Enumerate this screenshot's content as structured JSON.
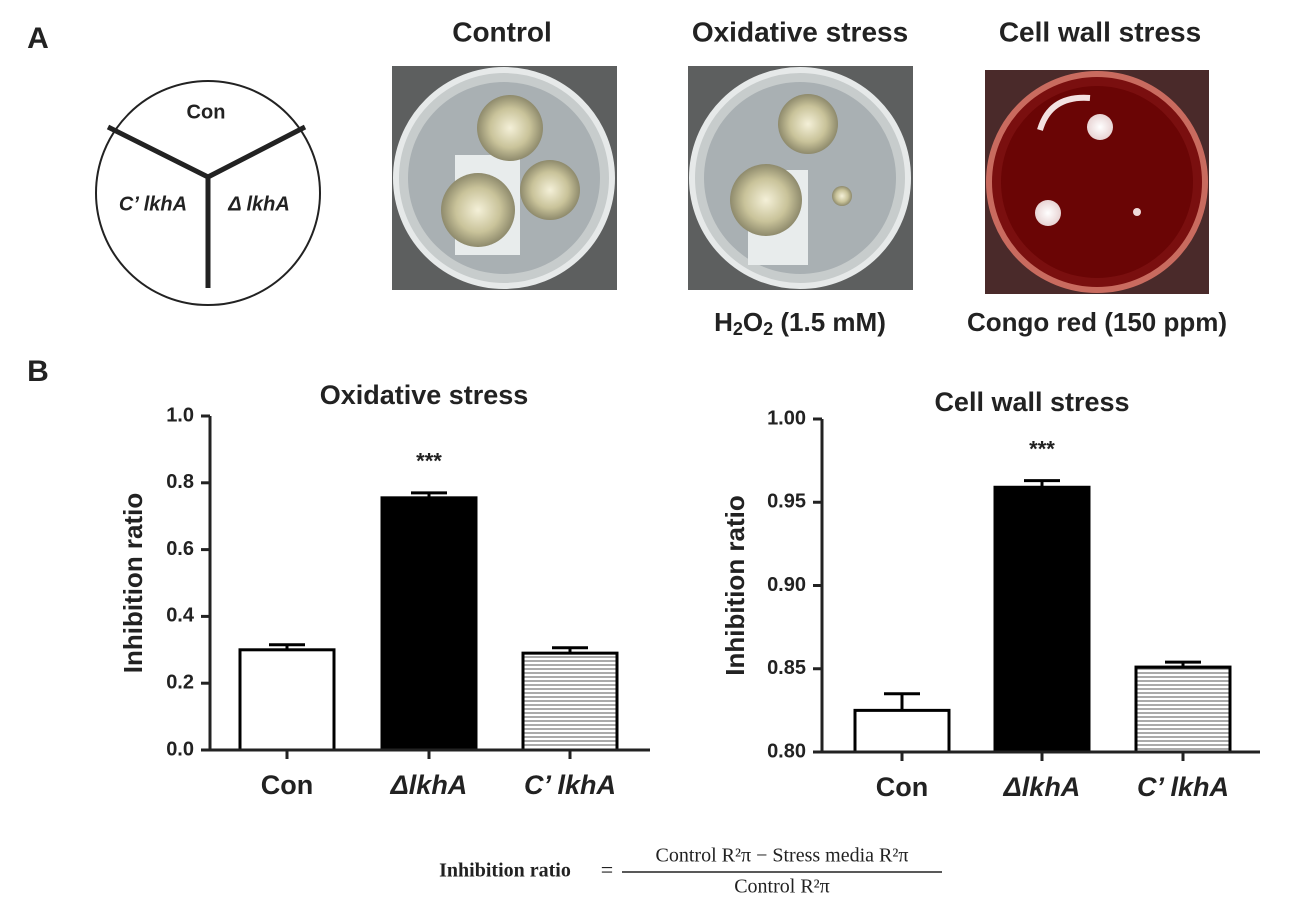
{
  "panel_labels": [
    "A",
    "B"
  ],
  "panel_a": {
    "diagram": {
      "top": "Con",
      "left": "C’ lkhA",
      "right": "Δ lkhA"
    },
    "photo_titles": [
      "Control",
      "Oxidative stress",
      "Cell wall stress"
    ],
    "captions": [
      [
        "H",
        "2",
        "O",
        "2",
        " (1.5 mM)"
      ],
      [
        "Congo red (150 ppm)"
      ]
    ]
  },
  "chart_data": [
    {
      "type": "bar",
      "title": "Oxidative stress",
      "y_label": "Inhibition ratio",
      "categories": [
        "Con",
        "ΔlkhA",
        "C’ lkhA"
      ],
      "values": [
        0.3,
        0.755,
        0.29
      ],
      "errors": [
        0.015,
        0.015,
        0.016
      ],
      "colors": [
        "#ffffff",
        "#000000",
        "#ffffff"
      ],
      "patterns": [
        "none",
        "none",
        "horizontal-lines"
      ],
      "annotations": [
        "***"
      ],
      "ylim": [
        0,
        1
      ],
      "yticks": [
        {
          "value": 0,
          "label": "0.0"
        },
        0.2,
        0.4,
        0.6,
        0.8,
        {
          "value": 1,
          "label": "1.0"
        }
      ]
    },
    {
      "type": "bar",
      "title": "Cell wall stress",
      "y_label": "Inhibition ratio",
      "categories": [
        "Con",
        "ΔlkhA",
        "C’ lkhA"
      ],
      "values": [
        0.825,
        0.959,
        0.851
      ],
      "errors": [
        0.01,
        0.004,
        0.003
      ],
      "colors": [
        "#ffffff",
        "#000000",
        "#ffffff"
      ],
      "patterns": [
        "none",
        "none",
        "horizontal-lines"
      ],
      "annotations": [
        "***"
      ],
      "ylim": [
        0.8,
        1
      ],
      "yticks": [
        {
          "value": 0.8,
          "label": "0.80"
        },
        0.85,
        {
          "value": 0.9,
          "label": "0.90"
        },
        0.95,
        {
          "value": 1,
          "label": "1.00"
        }
      ]
    }
  ],
  "formula": {
    "lhs": "Inhibition ratio",
    "equals": "=",
    "numerator": "Control R²π − Stress media R²π",
    "denominator": "Control R²π"
  }
}
